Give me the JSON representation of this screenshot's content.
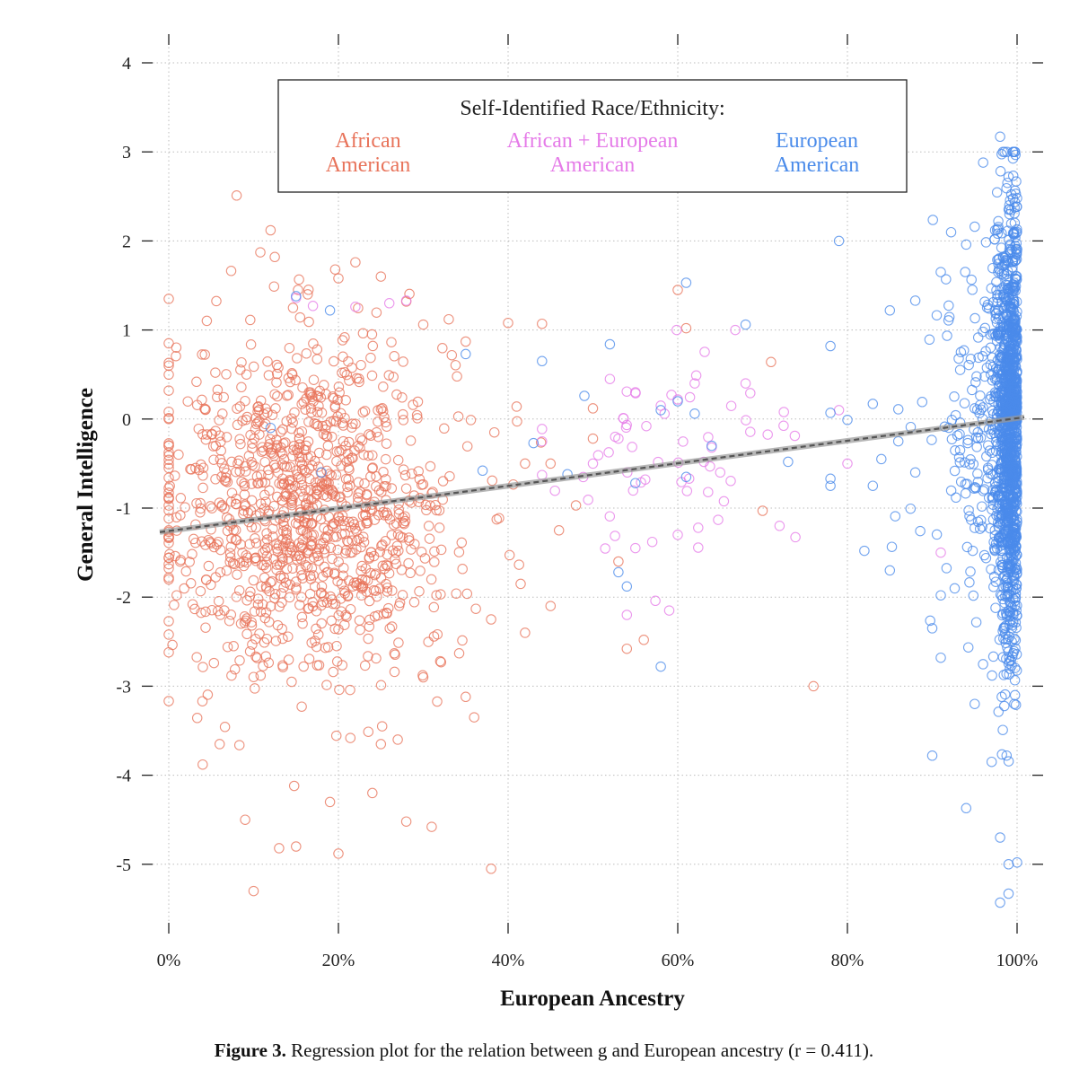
{
  "chart_data": {
    "type": "scatter",
    "title": "",
    "xlabel": "European Ancestry",
    "ylabel": "General Intelligence",
    "xlim": [
      0,
      1
    ],
    "ylim": [
      -5.6,
      4.3
    ],
    "x_ticks": [
      0,
      0.2,
      0.4,
      0.6,
      0.8,
      1.0
    ],
    "x_tick_labels": [
      "0%",
      "20%",
      "40%",
      "60%",
      "80%",
      "100%"
    ],
    "y_ticks": [
      4,
      3,
      2,
      1,
      0,
      -1,
      -2,
      -3,
      -4,
      -5
    ],
    "y_tick_labels": [
      "4",
      "3",
      "2",
      "1",
      "0",
      "-1",
      "-2",
      "-3",
      "-4",
      "-5"
    ],
    "grid": true,
    "legend": {
      "title": "Self-Identified Race/Ethnicity:",
      "placement": "top-center",
      "entries": [
        {
          "line1": "African",
          "line2": "American",
          "color": "#E8735A"
        },
        {
          "line1": "African + European",
          "line2": "American",
          "color": "#E57BE8"
        },
        {
          "line1": "European",
          "line2": "American",
          "color": "#4A8BEA"
        }
      ]
    },
    "regression": {
      "intercept": -1.23,
      "slope": 1.25,
      "color": "#555555",
      "style": "dashed"
    },
    "series": [
      {
        "name": "African American",
        "color": "#E8735A",
        "count": 1150,
        "points": [
          [
            0.0,
            0.63
          ],
          [
            0.0,
            0.6
          ],
          [
            0.0,
            1.35
          ],
          [
            0.0,
            -0.3
          ],
          [
            0.0,
            -0.88
          ],
          [
            0.0,
            -1.25
          ],
          [
            0.0,
            -1.78
          ],
          [
            0.0,
            -2.42
          ],
          [
            0.0,
            -2.62
          ],
          [
            0.0,
            0.0
          ],
          [
            0.0,
            -0.55
          ],
          [
            0.0,
            0.32
          ],
          [
            0.0,
            -1.32
          ],
          [
            0.0,
            -0.41
          ],
          [
            0.08,
            2.51
          ],
          [
            0.12,
            2.12
          ],
          [
            0.125,
            1.82
          ],
          [
            0.2,
            1.58
          ],
          [
            0.22,
            1.76
          ],
          [
            0.25,
            1.6
          ],
          [
            0.28,
            1.32
          ],
          [
            0.3,
            1.06
          ],
          [
            0.33,
            1.12
          ],
          [
            0.35,
            0.87
          ],
          [
            0.4,
            1.08
          ],
          [
            0.44,
            1.07
          ],
          [
            0.5,
            0.12
          ],
          [
            0.61,
            1.02
          ],
          [
            0.6,
            1.45
          ],
          [
            0.71,
            0.64
          ],
          [
            0.41,
            0.14
          ],
          [
            0.42,
            -0.5
          ],
          [
            0.45,
            -0.5
          ],
          [
            0.5,
            -0.22
          ],
          [
            0.38,
            -2.25
          ],
          [
            0.42,
            -2.4
          ],
          [
            0.45,
            -2.1
          ],
          [
            0.46,
            -1.25
          ],
          [
            0.48,
            -0.97
          ],
          [
            0.53,
            -1.6
          ],
          [
            0.54,
            -2.58
          ],
          [
            0.56,
            -2.48
          ],
          [
            0.7,
            -1.03
          ],
          [
            0.76,
            -3.0
          ],
          [
            0.38,
            -5.05
          ],
          [
            0.1,
            -5.3
          ],
          [
            0.2,
            -4.88
          ],
          [
            0.15,
            -4.8
          ],
          [
            0.13,
            -4.82
          ],
          [
            0.31,
            -4.58
          ],
          [
            0.28,
            -4.52
          ],
          [
            0.09,
            -4.5
          ],
          [
            0.04,
            -3.88
          ],
          [
            0.06,
            -3.65
          ],
          [
            0.19,
            -4.3
          ],
          [
            0.24,
            -4.2
          ],
          [
            0.25,
            -3.65
          ],
          [
            0.27,
            -3.6
          ],
          [
            0.36,
            -3.35
          ],
          [
            0.3,
            -2.9
          ],
          [
            0.32,
            -2.72
          ],
          [
            0.35,
            -3.12
          ]
        ]
      },
      {
        "name": "African + European American",
        "color": "#E57BE8",
        "count": 80,
        "points": [
          [
            0.52,
            0.45
          ],
          [
            0.55,
            0.3
          ],
          [
            0.58,
            0.15
          ],
          [
            0.6,
            0.22
          ],
          [
            0.62,
            0.4
          ],
          [
            0.65,
            -0.6
          ],
          [
            0.68,
            0.4
          ],
          [
            0.64,
            -0.32
          ],
          [
            0.5,
            -0.5
          ],
          [
            0.53,
            -0.22
          ],
          [
            0.55,
            -1.45
          ],
          [
            0.57,
            -1.38
          ],
          [
            0.6,
            -1.3
          ],
          [
            0.59,
            -2.15
          ],
          [
            0.54,
            -2.2
          ],
          [
            0.72,
            -1.2
          ],
          [
            0.79,
            0.1
          ],
          [
            0.8,
            -0.5
          ],
          [
            0.91,
            -1.5
          ],
          [
            0.28,
            1.33
          ],
          [
            0.15,
            1.36
          ],
          [
            0.17,
            1.27
          ],
          [
            0.22,
            1.26
          ],
          [
            0.26,
            1.3
          ]
        ]
      },
      {
        "name": "European American",
        "color": "#4A8BEA",
        "count": 1500,
        "points": [
          [
            0.79,
            2.0
          ],
          [
            0.98,
            3.17
          ],
          [
            0.96,
            2.88
          ],
          [
            0.99,
            2.72
          ],
          [
            1.0,
            2.48
          ],
          [
            0.95,
            2.16
          ],
          [
            0.94,
            1.96
          ],
          [
            0.91,
            1.65
          ],
          [
            0.85,
            1.22
          ],
          [
            0.88,
            1.33
          ],
          [
            0.61,
            1.53
          ],
          [
            0.68,
            1.06
          ],
          [
            0.52,
            0.84
          ],
          [
            0.78,
            0.82
          ],
          [
            0.44,
            0.65
          ],
          [
            0.6,
            0.2
          ],
          [
            0.49,
            0.26
          ],
          [
            0.62,
            0.06
          ],
          [
            0.58,
            0.1
          ],
          [
            0.78,
            0.07
          ],
          [
            0.8,
            -0.01
          ],
          [
            0.83,
            0.17
          ],
          [
            0.86,
            0.11
          ],
          [
            0.84,
            -0.45
          ],
          [
            0.83,
            -0.75
          ],
          [
            0.86,
            -0.25
          ],
          [
            0.88,
            -0.6
          ],
          [
            0.78,
            -0.75
          ],
          [
            0.78,
            -0.67
          ],
          [
            0.73,
            -0.48
          ],
          [
            0.61,
            -0.65
          ],
          [
            0.64,
            -0.3
          ],
          [
            0.55,
            -0.72
          ],
          [
            0.53,
            -1.72
          ],
          [
            0.54,
            -1.88
          ],
          [
            0.58,
            -2.78
          ],
          [
            0.82,
            -1.48
          ],
          [
            0.85,
            -1.7
          ],
          [
            0.91,
            -1.98
          ],
          [
            0.9,
            -2.35
          ],
          [
            0.91,
            -2.68
          ],
          [
            0.9,
            -3.78
          ],
          [
            0.94,
            -4.37
          ],
          [
            0.98,
            -4.7
          ],
          [
            0.99,
            -5.0
          ],
          [
            1.0,
            -4.98
          ],
          [
            0.99,
            -5.33
          ],
          [
            0.98,
            -5.43
          ],
          [
            0.97,
            -3.85
          ],
          [
            0.95,
            -3.2
          ],
          [
            0.19,
            1.22
          ],
          [
            0.37,
            -0.58
          ],
          [
            0.43,
            -0.27
          ],
          [
            0.47,
            -0.62
          ],
          [
            0.35,
            0.73
          ],
          [
            0.15,
            1.38
          ],
          [
            0.12,
            -0.1
          ],
          [
            0.18,
            -0.6
          ]
        ]
      }
    ]
  },
  "caption": {
    "label": "Figure 3.",
    "text": " Regression plot for the relation between g and European ancestry (r = 0.411)."
  }
}
